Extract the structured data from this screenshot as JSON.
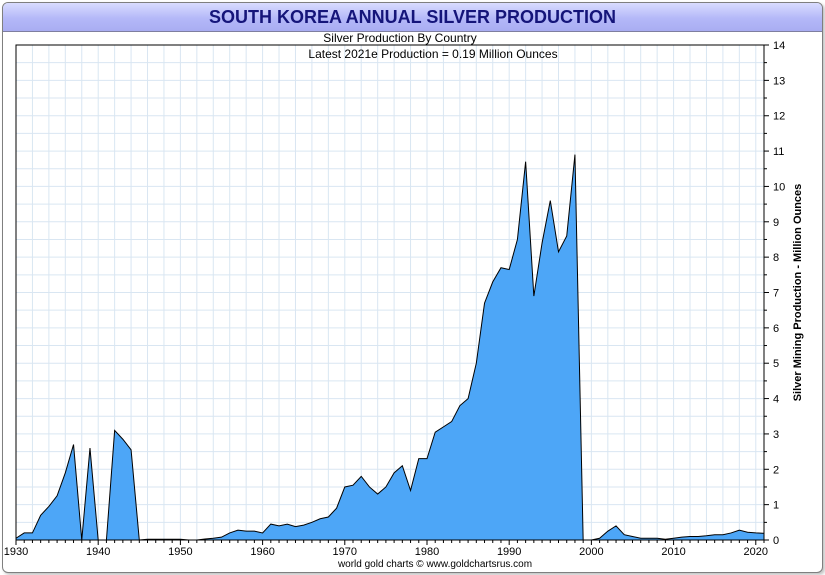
{
  "chart_data": {
    "type": "area",
    "title": "SOUTH KOREA ANNUAL SILVER PRODUCTION",
    "subtitle": "Silver Production By Country",
    "annotation": "Latest 2021e Production = 0.19 Million Ounces",
    "ylabel": "Silver Mining Production - Million Ounces",
    "source": "world gold charts © www.goldchartsrus.com",
    "xlim": [
      1930,
      2021
    ],
    "ylim": [
      0,
      14
    ],
    "xticks": [
      1930,
      1940,
      1950,
      1960,
      1970,
      1980,
      1990,
      2000,
      2010,
      2020
    ],
    "yticks": [
      0,
      1,
      2,
      3,
      4,
      5,
      6,
      7,
      8,
      9,
      10,
      11,
      12,
      13,
      14
    ],
    "grid": true,
    "colors": {
      "fill": "#4da6f7",
      "line": "#000000",
      "grid": "#d9e6f2",
      "title": "#15157a"
    },
    "series": [
      {
        "name": "South Korea silver production",
        "x": [
          1930,
          1931,
          1932,
          1933,
          1934,
          1935,
          1936,
          1937,
          1938,
          1939,
          1940,
          1941,
          1942,
          1943,
          1944,
          1945,
          1946,
          1947,
          1948,
          1949,
          1950,
          1951,
          1952,
          1953,
          1954,
          1955,
          1956,
          1957,
          1958,
          1959,
          1960,
          1961,
          1962,
          1963,
          1964,
          1965,
          1966,
          1967,
          1968,
          1969,
          1970,
          1971,
          1972,
          1973,
          1974,
          1975,
          1976,
          1977,
          1978,
          1979,
          1980,
          1981,
          1982,
          1983,
          1984,
          1985,
          1986,
          1987,
          1988,
          1989,
          1990,
          1991,
          1992,
          1993,
          1994,
          1995,
          1996,
          1997,
          1998,
          1999,
          2000,
          2001,
          2002,
          2003,
          2004,
          2005,
          2006,
          2007,
          2008,
          2009,
          2010,
          2011,
          2012,
          2013,
          2014,
          2015,
          2016,
          2017,
          2018,
          2019,
          2020,
          2021
        ],
        "values": [
          0.05,
          0.2,
          0.2,
          0.7,
          0.95,
          1.25,
          1.9,
          2.7,
          0.0,
          2.6,
          0.0,
          0.0,
          3.1,
          2.85,
          2.55,
          0.0,
          0.02,
          0.02,
          0.02,
          0.02,
          0.02,
          0.0,
          0.0,
          0.03,
          0.05,
          0.08,
          0.2,
          0.28,
          0.25,
          0.25,
          0.2,
          0.45,
          0.4,
          0.45,
          0.38,
          0.42,
          0.5,
          0.6,
          0.65,
          0.9,
          1.5,
          1.55,
          1.8,
          1.5,
          1.3,
          1.5,
          1.9,
          2.1,
          1.4,
          2.3,
          2.3,
          3.05,
          3.2,
          3.35,
          3.8,
          4.0,
          5.0,
          6.7,
          7.3,
          7.7,
          7.65,
          8.5,
          10.7,
          6.9,
          8.4,
          9.6,
          8.15,
          8.6,
          10.9,
          0.0,
          0.0,
          0.05,
          0.25,
          0.4,
          0.15,
          0.1,
          0.05,
          0.05,
          0.05,
          0.02,
          0.05,
          0.08,
          0.1,
          0.1,
          0.12,
          0.15,
          0.15,
          0.2,
          0.28,
          0.22,
          0.2,
          0.19
        ]
      }
    ]
  }
}
